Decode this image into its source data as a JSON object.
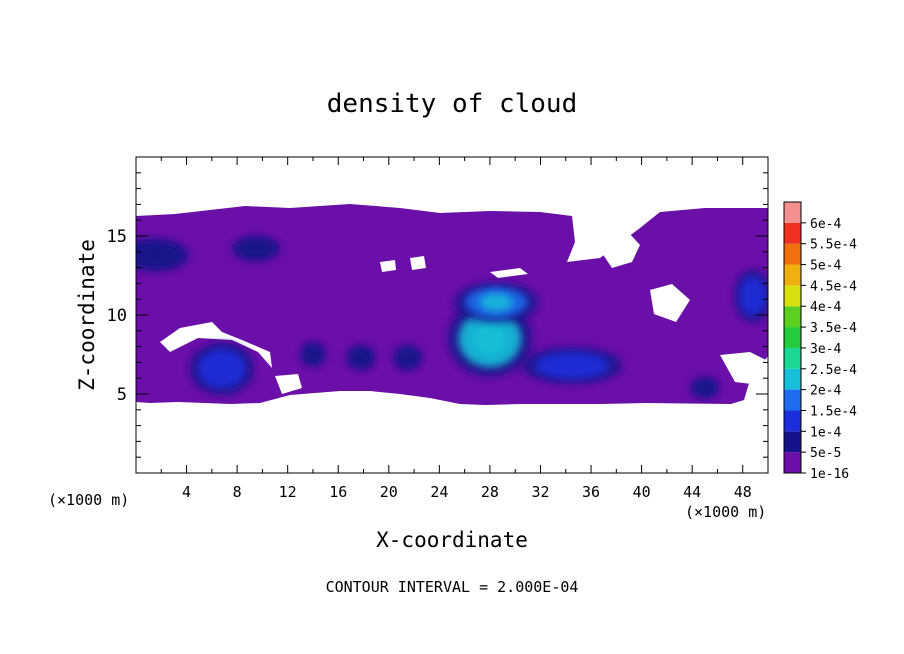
{
  "chart_data": {
    "type": "heatmap",
    "title": "density of cloud",
    "xlabel": "X-coordinate",
    "ylabel": "Z-coordinate",
    "x_unit_left": "(×1000 m)",
    "x_unit_right": "(×1000 m)",
    "xlim": [
      0,
      50
    ],
    "ylim": [
      0,
      20
    ],
    "x_ticks": [
      4,
      8,
      12,
      16,
      20,
      24,
      28,
      32,
      36,
      40,
      44,
      48
    ],
    "x_tick_labels": [
      "4",
      "8",
      "12",
      "16",
      "20",
      "24",
      "28",
      "32",
      "36",
      "40",
      "44",
      "48"
    ],
    "y_ticks": [
      5,
      10,
      15
    ],
    "y_tick_labels": [
      "5",
      "10",
      "15"
    ],
    "footer": "CONTOUR INTERVAL = 2.000E-04",
    "colorbar": {
      "labels": [
        "1e-16",
        "5e-5",
        "1e-4",
        "1.5e-4",
        "2e-4",
        "2.5e-4",
        "3e-4",
        "3.5e-4",
        "4e-4",
        "4.5e-4",
        "5e-4",
        "5.5e-4",
        "6e-4"
      ],
      "colors": [
        "#6a0fa8",
        "#16128a",
        "#1c2ddc",
        "#1f6cf0",
        "#16c0d8",
        "#18d894",
        "#22cc3c",
        "#5cd020",
        "#d8e010",
        "#f0b010",
        "#f07010",
        "#f03020",
        "#f59090"
      ]
    },
    "cloud_region": {
      "z_bottom_approx": 4.5,
      "z_top_approx": 16.5,
      "background_value": "1e-16"
    },
    "cores": [
      {
        "x": 1.5,
        "z": 13.8,
        "value": 5e-05
      },
      {
        "x": 9.5,
        "z": 14.2,
        "value": 5e-05
      },
      {
        "x": 6.8,
        "z": 6.6,
        "value": 0.0001
      },
      {
        "x": 14.0,
        "z": 7.5,
        "value": 5e-05
      },
      {
        "x": 17.8,
        "z": 7.3,
        "value": 5e-05
      },
      {
        "x": 21.5,
        "z": 7.3,
        "value": 5e-05
      },
      {
        "x": 28.0,
        "z": 8.5,
        "value": 0.0002
      },
      {
        "x": 28.5,
        "z": 10.8,
        "value": 0.00015
      },
      {
        "x": 34.5,
        "z": 6.8,
        "value": 0.0001
      },
      {
        "x": 45.0,
        "z": 5.4,
        "value": 5e-05
      },
      {
        "x": 48.8,
        "z": 11.2,
        "value": 0.0001
      }
    ]
  }
}
